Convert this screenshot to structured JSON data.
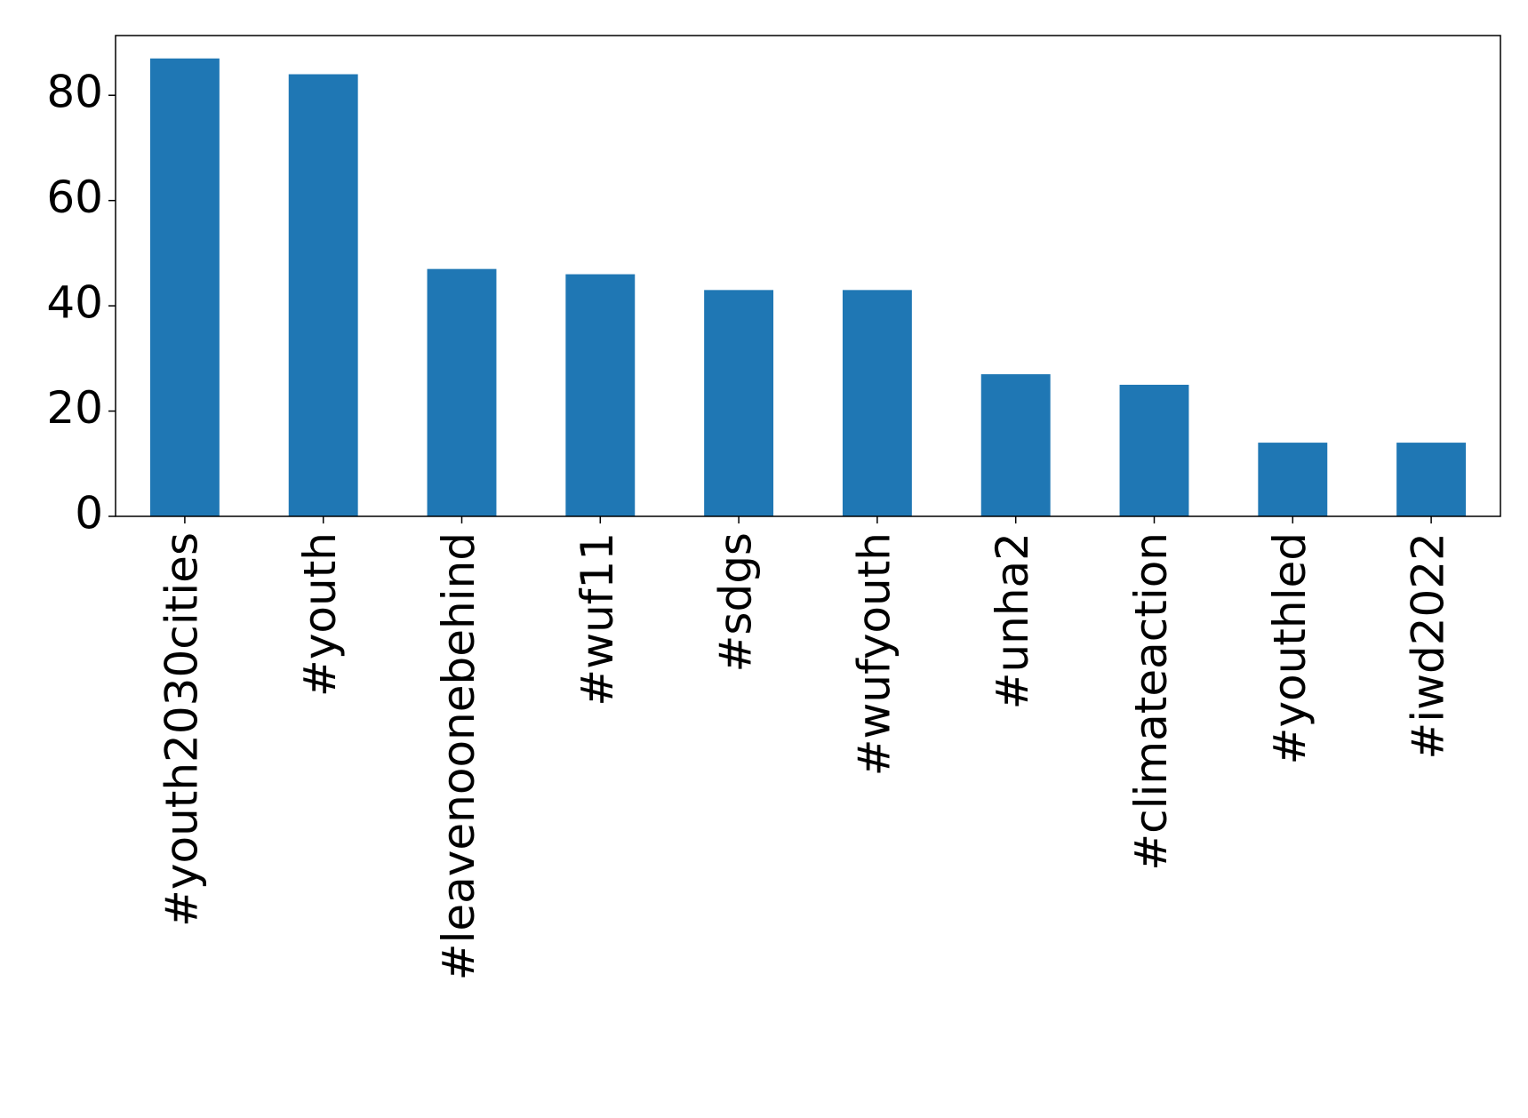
{
  "chart_data": {
    "type": "bar",
    "categories": [
      "#youth2030cities",
      "#youth",
      "#leavenoonebehind",
      "#wuf11",
      "#sdgs",
      "#wufyouth",
      "#unha2",
      "#climateaction",
      "#youthled",
      "#iwd2022"
    ],
    "values": [
      87,
      84,
      47,
      46,
      43,
      43,
      27,
      25,
      14,
      14
    ],
    "color": "#1f77b4",
    "ylim": [
      0,
      91.35
    ],
    "yticks": [
      0,
      20,
      40,
      60,
      80
    ],
    "grid": false
  }
}
